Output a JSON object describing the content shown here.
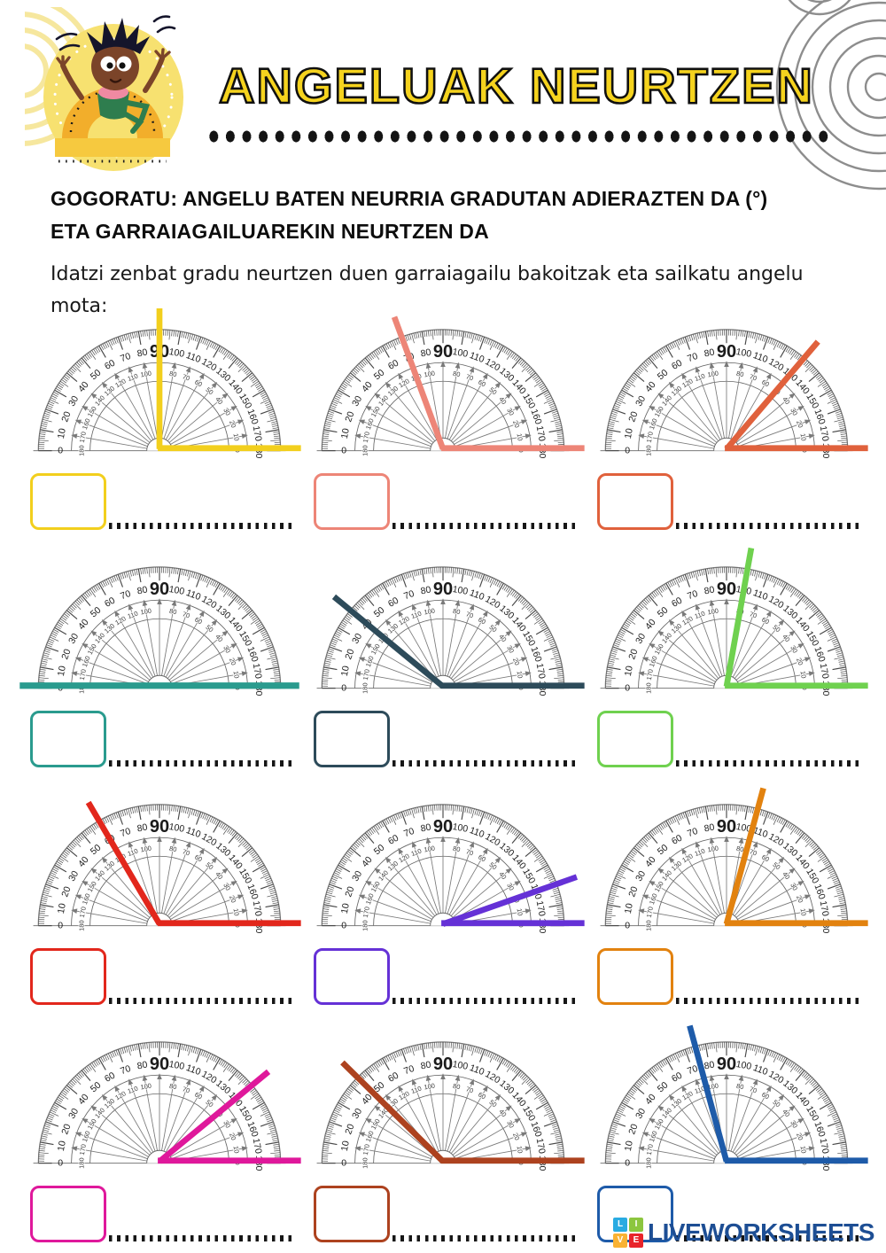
{
  "header": {
    "title": "ANGELUAK NEURTZEN",
    "mascot": "kid-sitting-on-protractor-illustration"
  },
  "reminder": {
    "line1": "GOGORATU: ANGELU BATEN NEURRIA GRADUTAN ADIERAZTEN DA (°)",
    "line2": "ETA GARRAIAGAILUAREKIN NEURTZEN DA"
  },
  "instruction": "Idatzi zenbat gradu neurtzen duen garraiagailu bakoitzak eta sailkatu angelu mota:",
  "protractor_scale": {
    "label_values": [
      0,
      10,
      20,
      30,
      40,
      50,
      60,
      70,
      80,
      90,
      100,
      110,
      120,
      130,
      140,
      150,
      160,
      170,
      180
    ],
    "outer_scale_direction": "0 at left, 180 at right",
    "inner_scale_direction": "0 at right, 180 at left",
    "center_top_label": "90",
    "tick_step_degrees": 1
  },
  "exercises": [
    {
      "angle_degrees": 90,
      "color": "#f2cf1d"
    },
    {
      "angle_degrees": 110,
      "color": "#ed8577"
    },
    {
      "angle_degrees": 50,
      "color": "#e0613c"
    },
    {
      "angle_degrees": 180,
      "color": "#2a9b8e"
    },
    {
      "angle_degrees": 140,
      "color": "#2d4b5a"
    },
    {
      "angle_degrees": 80,
      "color": "#6fd14f"
    },
    {
      "angle_degrees": 120,
      "color": "#e2271c"
    },
    {
      "angle_degrees": 20,
      "color": "#6531d6"
    },
    {
      "angle_degrees": 75,
      "color": "#e2820f"
    },
    {
      "angle_degrees": 40,
      "color": "#df189b"
    },
    {
      "angle_degrees": 135,
      "color": "#ad421f"
    },
    {
      "angle_degrees": 105,
      "color": "#1e5ba9"
    }
  ],
  "answer_boxes": {
    "value": "",
    "note": "empty colored boxes with dotted answer lines"
  },
  "footer": {
    "brand": "LIVEWORKSHEETS",
    "brand_color": "#1d4e94",
    "tiles": [
      {
        "letter": "L",
        "color": "#29abe2"
      },
      {
        "letter": "I",
        "color": "#8cc63f"
      },
      {
        "letter": "V",
        "color": "#f9b233"
      },
      {
        "letter": "E",
        "color": "#e8242a"
      }
    ]
  }
}
